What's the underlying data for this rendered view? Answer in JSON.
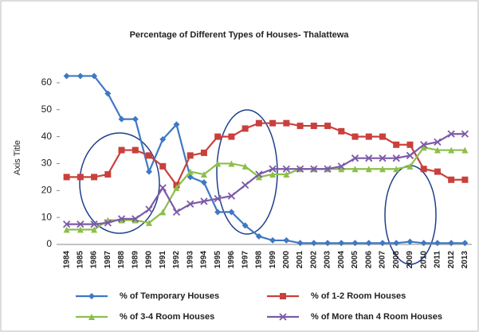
{
  "chart_data": {
    "type": "line",
    "title": "Percentage of Different Types of Houses- Thalattewa",
    "y_label": "Axis Title",
    "categories": [
      "1984",
      "1985",
      "1986",
      "1987",
      "1988",
      "1989",
      "1990",
      "1991",
      "1992",
      "1993",
      "1994",
      "1995",
      "1996",
      "1997",
      "1998",
      "1999",
      "2000",
      "2001",
      "2002",
      "2003",
      "2004",
      "2005",
      "2006",
      "2007",
      "2008",
      "2009",
      "2010",
      "2011",
      "2012",
      "2013"
    ],
    "ylim": [
      0,
      65
    ],
    "yticks": [
      0,
      10,
      20,
      30,
      40,
      50,
      60
    ],
    "series": [
      {
        "name": "% of Temporary Houses",
        "color": "#3f78c4",
        "marker": "diamond",
        "values": [
          62.5,
          62.5,
          62.5,
          56,
          46.5,
          46.5,
          27,
          39,
          44.5,
          25,
          23,
          12,
          12,
          7,
          3,
          1.5,
          1.5,
          0.5,
          0.5,
          0.5,
          0.5,
          0.5,
          0.5,
          0.5,
          0.5,
          1,
          0.5,
          0.5,
          0.5,
          0.5
        ]
      },
      {
        "name": "% of 1-2 Room Houses",
        "color": "#c9403c",
        "marker": "square",
        "values": [
          25,
          25,
          25,
          26,
          35,
          35,
          33,
          29,
          22,
          33,
          34,
          40,
          40,
          43,
          45,
          45,
          45,
          44,
          44,
          44,
          42,
          40,
          40,
          40,
          37,
          37,
          28,
          27,
          24,
          24
        ]
      },
      {
        "name": "% of 3-4 Room Houses",
        "color": "#8cbf4a",
        "marker": "triangle",
        "values": [
          5.5,
          5.5,
          5.5,
          9,
          9,
          9,
          8,
          12,
          21,
          27,
          26,
          30,
          30,
          29,
          25,
          26,
          26,
          28,
          28,
          28,
          28,
          28,
          28,
          28,
          28,
          29,
          36,
          35,
          35,
          35
        ]
      },
      {
        "name": "% of More than 4 Room Houses",
        "color": "#7c5aa8",
        "marker": "x",
        "values": [
          7.5,
          7.5,
          7.5,
          8,
          9.5,
          9.5,
          13,
          21,
          12,
          15,
          16,
          17,
          18,
          22,
          26,
          28,
          28,
          28,
          28,
          28,
          29,
          32,
          32,
          32,
          32,
          33,
          37,
          38,
          41,
          41
        ]
      }
    ]
  }
}
